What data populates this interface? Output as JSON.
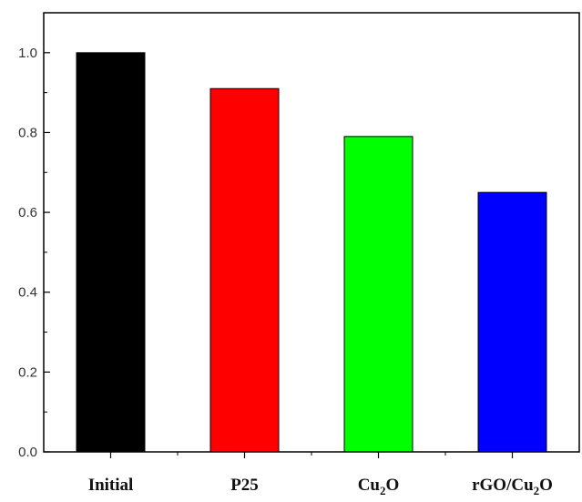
{
  "chart_data": {
    "type": "bar",
    "title": "",
    "xlabel": "",
    "ylabel": "",
    "categories": [
      "Initial",
      "P25",
      "Cu2O",
      "rGO/Cu2O"
    ],
    "category_labels": [
      {
        "text": "Initial"
      },
      {
        "text": "P25"
      },
      {
        "base": "Cu",
        "sub": "2",
        "tail": "O"
      },
      {
        "base": "rGO/Cu",
        "sub": "2",
        "tail": "O"
      }
    ],
    "values": [
      1.0,
      0.91,
      0.79,
      0.65
    ],
    "colors": [
      "#000000",
      "#ff0000",
      "#00ff00",
      "#0000ff"
    ],
    "ylim": [
      0,
      1.1
    ],
    "yticks": [
      0.0,
      0.2,
      0.4,
      0.6,
      0.8,
      1.0
    ],
    "ytick_labels": [
      "0.0",
      "0.2",
      "0.4",
      "0.6",
      "0.8",
      "1.0"
    ],
    "grid": false,
    "legend": "none"
  }
}
